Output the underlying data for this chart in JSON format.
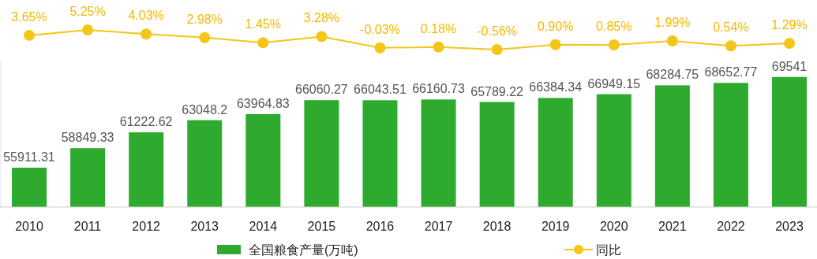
{
  "chart_data": [
    {
      "type": "bar",
      "categories": [
        "2010",
        "2011",
        "2012",
        "2013",
        "2014",
        "2015",
        "2016",
        "2017",
        "2018",
        "2019",
        "2020",
        "2021",
        "2022",
        "2023"
      ],
      "series": [
        {
          "name": "全国粮食产量(万吨)",
          "color": "#2eaa2e",
          "values": [
            55911.31,
            58849.33,
            61222.62,
            63048.2,
            63964.83,
            66060.27,
            66043.51,
            66160.73,
            65789.22,
            66384.34,
            66949.15,
            68284.75,
            68652.77,
            69541
          ]
        }
      ],
      "ylim": [
        50000,
        72000
      ],
      "data_labels": true,
      "legend": "bottom"
    },
    {
      "type": "line",
      "categories": [
        null,
        null,
        null,
        null,
        null,
        null,
        null,
        null,
        null,
        null,
        null,
        null,
        null,
        null
      ],
      "series": [
        {
          "name": "同比",
          "color": "#f5c518",
          "values": [
            3.65,
            5.25,
            4.03,
            2.98,
            1.45,
            3.28,
            -0.03,
            0.18,
            -0.56,
            0.9,
            0.85,
            1.99,
            0.54,
            1.29
          ],
          "value_labels": [
            "3.65%",
            "5.25%",
            "4.03%",
            "2.98%",
            "1.45%",
            "3.28%",
            "-0.03%",
            "0.18%",
            "-0.56%",
            "0.90%",
            "0.85%",
            "1.99%",
            "0.54%",
            "1.29%"
          ]
        }
      ],
      "marker": "circle",
      "legend": "bottom"
    }
  ]
}
